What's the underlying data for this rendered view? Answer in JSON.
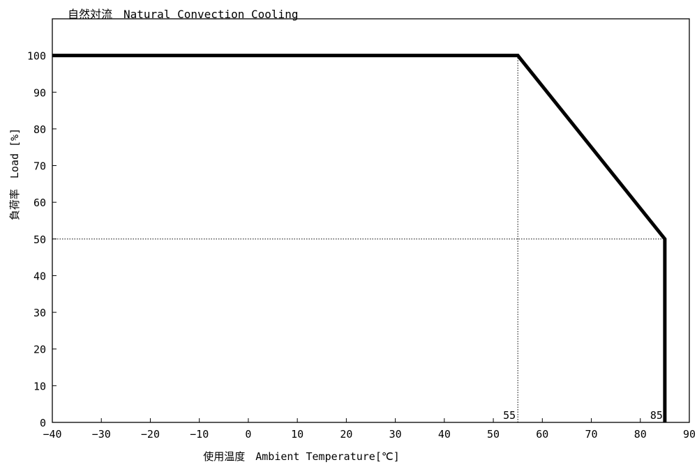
{
  "chart_data": {
    "type": "line",
    "title": "自然対流　Natural Convection Cooling",
    "xlabel": "使用温度　Ambient Temperature[℃]",
    "ylabel": "負荷率　Load [%]",
    "xlim": [
      -40,
      90
    ],
    "ylim": [
      0,
      110
    ],
    "x_ticks": [
      -40,
      -30,
      -20,
      -10,
      0,
      10,
      20,
      30,
      40,
      50,
      60,
      70,
      80,
      90
    ],
    "x_tick_labels": [
      "−40",
      "−30",
      "−20",
      "−10",
      "0",
      "10",
      "20",
      "30",
      "40",
      "50",
      "60",
      "70",
      "80",
      "90"
    ],
    "y_ticks": [
      0,
      10,
      20,
      30,
      40,
      50,
      60,
      70,
      80,
      90,
      100
    ],
    "y_tick_labels": [
      "0",
      "10",
      "20",
      "30",
      "40",
      "50",
      "60",
      "70",
      "80",
      "90",
      "100"
    ],
    "grid": false,
    "series": [
      {
        "x": [
          -40,
          55,
          85,
          85
        ],
        "y": [
          100,
          100,
          50,
          0
        ],
        "color": "#000000"
      }
    ],
    "reference_lines": [
      {
        "orientation": "vertical",
        "x": 55,
        "y_from": 0,
        "y_to": 100,
        "style": "dotted"
      },
      {
        "orientation": "vertical",
        "x": 85,
        "y_from": 0,
        "y_to": 50,
        "style": "dotted"
      },
      {
        "orientation": "horizontal",
        "y": 50,
        "x_from": -40,
        "x_to": 85,
        "style": "dotted"
      }
    ],
    "annotations": [
      {
        "text": "55",
        "x": 55,
        "y": 0
      },
      {
        "text": "85",
        "x": 85,
        "y": 0
      }
    ]
  }
}
